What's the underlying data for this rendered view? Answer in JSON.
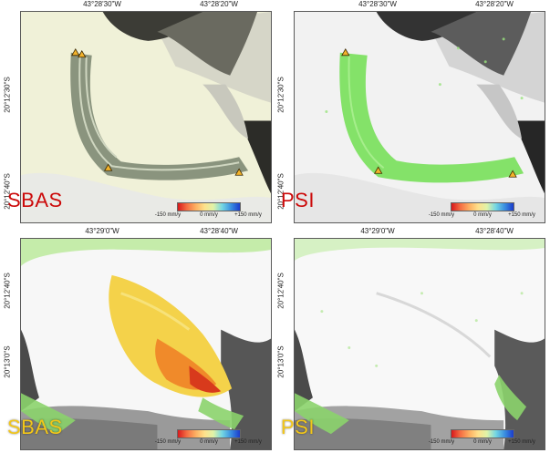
{
  "legend_colors": [
    "#d7191c",
    "#f46d43",
    "#fdae61",
    "#fee08b",
    "#e0f3a8",
    "#74d6e3",
    "#3a8fe0",
    "#1b3bcc"
  ],
  "panels": [
    {
      "method": "SBAS",
      "method_color": "#cc0a0a",
      "lon_labels": [
        "43°28'30\"W",
        "43°28'20\"W"
      ],
      "lat_labels": [
        "20°12'30\"S",
        "20°12'40\"S"
      ],
      "legend": [
        "-150 mm/y",
        "0 mm/y",
        "+150 mm/y"
      ]
    },
    {
      "method": "PSI",
      "method_color": "#cc0a0a",
      "lon_labels": [
        "43°28'30\"W",
        "43°28'20\"W"
      ],
      "lat_labels": [
        "20°12'30\"S",
        "20°12'40\"S"
      ],
      "legend": [
        "-150 mm/y",
        "0 mm/y",
        "+150 mm/y"
      ]
    },
    {
      "method": "SBAS",
      "method_color": "#f2c619",
      "lon_labels": [
        "43°29'0\"W",
        "43°28'40\"W"
      ],
      "lat_labels": [
        "20°12'40\"S",
        "20°13'0\"S"
      ],
      "legend": [
        "-150 mm/y",
        "0 mm/y",
        "+150 mm/y"
      ]
    },
    {
      "method": "PSI",
      "method_color": "#f2c619",
      "lon_labels": [
        "43°29'0\"W",
        "43°28'40\"W"
      ],
      "lat_labels": [
        "20°12'40\"S",
        "20°13'0\"S"
      ],
      "legend": [
        "-150 mm/y",
        "0 mm/y",
        "+150 mm/y"
      ]
    }
  ]
}
